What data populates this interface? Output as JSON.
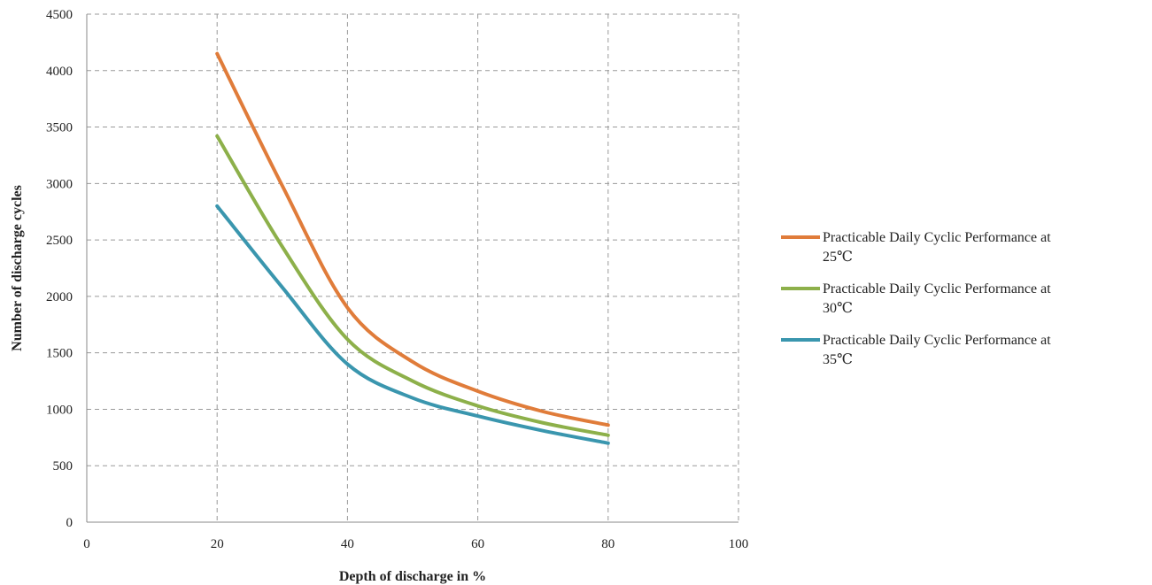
{
  "chart_data": {
    "type": "line",
    "title": "",
    "xlabel": "Depth of discharge in %",
    "ylabel": "Number of discharge cycles",
    "xlim": [
      0,
      100
    ],
    "ylim": [
      0,
      4500
    ],
    "x_ticks": [
      0,
      20,
      40,
      60,
      80,
      100
    ],
    "y_ticks": [
      0,
      500,
      1000,
      1500,
      2000,
      2500,
      3000,
      3500,
      4000,
      4500
    ],
    "grid": "dashed",
    "legend_position": "right",
    "series": [
      {
        "name": "Practicable Daily Cyclic Performance at 25℃",
        "name_lines": [
          "Practicable Daily Cyclic Performance at",
          "25℃"
        ],
        "color": "#e07c3a",
        "x": [
          20,
          30,
          40,
          50,
          60,
          70,
          80
        ],
        "y": [
          4150,
          2980,
          1900,
          1420,
          1160,
          980,
          860
        ]
      },
      {
        "name": "Practicable Daily Cyclic Performance at 30℃",
        "name_lines": [
          "Practicable Daily Cyclic Performance at",
          "30℃"
        ],
        "color": "#8db04a",
        "x": [
          20,
          30,
          40,
          50,
          60,
          70,
          80
        ],
        "y": [
          3420,
          2440,
          1620,
          1250,
          1030,
          880,
          770
        ]
      },
      {
        "name": "Practicable Daily Cyclic Performance at 35℃",
        "name_lines": [
          "Practicable Daily Cyclic Performance at",
          "35℃"
        ],
        "color": "#3a96ae",
        "x": [
          20,
          30,
          40,
          50,
          60,
          70,
          80
        ],
        "y": [
          2800,
          2080,
          1400,
          1100,
          940,
          810,
          700
        ]
      }
    ]
  }
}
